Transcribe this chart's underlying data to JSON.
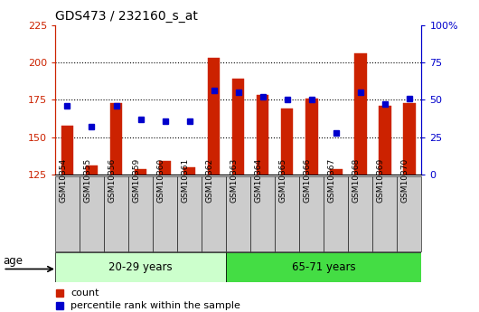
{
  "title": "GDS473 / 232160_s_at",
  "samples": [
    "GSM10354",
    "GSM10355",
    "GSM10356",
    "GSM10359",
    "GSM10360",
    "GSM10361",
    "GSM10362",
    "GSM10363",
    "GSM10364",
    "GSM10365",
    "GSM10366",
    "GSM10367",
    "GSM10368",
    "GSM10369",
    "GSM10370"
  ],
  "counts": [
    158,
    131,
    173,
    129,
    134,
    130,
    203,
    189,
    178,
    169,
    176,
    129,
    206,
    171,
    173
  ],
  "percentiles": [
    46,
    32,
    46,
    37,
    36,
    36,
    56,
    55,
    52,
    50,
    50,
    28,
    55,
    47,
    51
  ],
  "baseline": 125,
  "ylim_left": [
    125,
    225
  ],
  "ylim_right": [
    0,
    100
  ],
  "yticks_left": [
    125,
    150,
    175,
    200,
    225
  ],
  "yticks_right": [
    0,
    25,
    50,
    75,
    100
  ],
  "group1_label": "20-29 years",
  "group2_label": "65-71 years",
  "group1_count": 7,
  "group2_count": 8,
  "bar_color": "#cc2200",
  "dot_color": "#0000cc",
  "group1_bg": "#ccffcc",
  "group2_bg": "#44dd44",
  "age_label": "age",
  "grid_color": "#000000",
  "legend_count_label": "count",
  "legend_pct_label": "percentile rank within the sample",
  "tick_bg": "#cccccc"
}
